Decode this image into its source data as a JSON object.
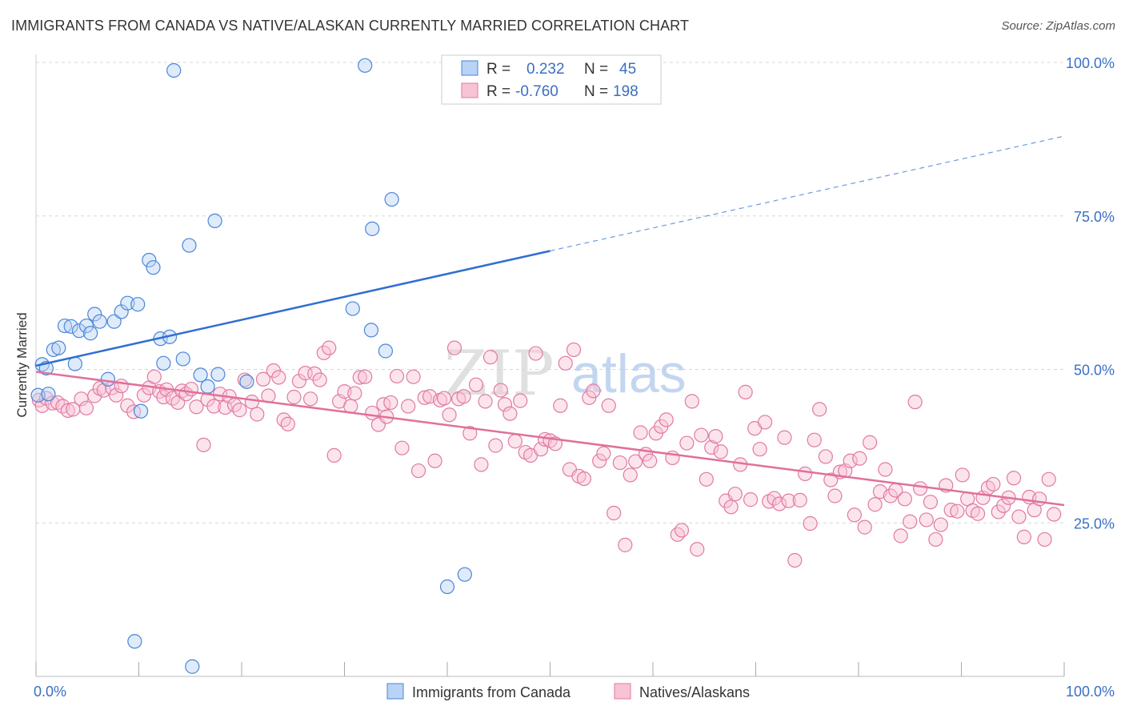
{
  "header": {
    "title": "IMMIGRANTS FROM CANADA VS NATIVE/ALASKAN CURRENTLY MARRIED CORRELATION CHART",
    "source": "Source: ZipAtlas.com"
  },
  "watermark": {
    "zip": "ZIP",
    "atlas": "atlas"
  },
  "colors": {
    "blue": "#4a86d8",
    "blue_fill": "#b8d3f5",
    "pink": "#e07aa2",
    "pink_fill": "#f8c3d5",
    "blue_line": "#2f6fd0",
    "pink_line": "#e0709a",
    "tick_label": "#3a6fc4",
    "grid": "#d7d7d7"
  },
  "legend_top": {
    "rows": [
      {
        "r_label": "R =",
        "r_value": "0.232",
        "n_label": "N =",
        "n_value": "45"
      },
      {
        "r_label": "R =",
        "r_value": "-0.760",
        "n_label": "N =",
        "n_value": "198"
      }
    ]
  },
  "legend_bottom": {
    "items": [
      "Immigrants from Canada",
      "Natives/Alaskans"
    ]
  },
  "chart_data": {
    "type": "scatter",
    "title": "IMMIGRANTS FROM CANADA VS NATIVE/ALASKAN CURRENTLY MARRIED CORRELATION CHART",
    "xlabel": "",
    "ylabel": "Currently Married",
    "xlim": [
      0,
      100
    ],
    "ylim": [
      0,
      100
    ],
    "x_tick_labels": [
      "0.0%",
      "100.0%"
    ],
    "y_ticks": [
      25,
      50,
      75,
      100
    ],
    "y_tick_labels": [
      "25.0%",
      "50.0%",
      "75.0%",
      "100.0%"
    ],
    "grid": true,
    "legend_position": "bottom",
    "series": [
      {
        "name": "Immigrants from Canada",
        "r": 0.232,
        "n": 45,
        "trend": {
          "x": [
            0,
            50,
            100
          ],
          "y": [
            50.6,
            69.3,
            88.0
          ],
          "solid_until": 50
        },
        "points": [
          [
            0.2,
            45.8
          ],
          [
            0.6,
            50.8
          ],
          [
            1.0,
            50.2
          ],
          [
            1.7,
            53.2
          ],
          [
            2.2,
            53.5
          ],
          [
            2.8,
            57.1
          ],
          [
            3.4,
            57.0
          ],
          [
            3.8,
            50.9
          ],
          [
            4.2,
            56.3
          ],
          [
            4.9,
            57.1
          ],
          [
            5.3,
            55.9
          ],
          [
            5.7,
            59.0
          ],
          [
            6.2,
            57.8
          ],
          [
            7.0,
            48.4
          ],
          [
            7.6,
            57.8
          ],
          [
            8.3,
            59.4
          ],
          [
            8.9,
            60.8
          ],
          [
            9.9,
            60.6
          ],
          [
            10.2,
            43.2
          ],
          [
            11.0,
            67.8
          ],
          [
            11.4,
            66.6
          ],
          [
            12.1,
            55.0
          ],
          [
            12.4,
            51.0
          ],
          [
            13.0,
            55.3
          ],
          [
            13.4,
            98.7
          ],
          [
            14.3,
            51.7
          ],
          [
            14.9,
            70.2
          ],
          [
            16.0,
            49.1
          ],
          [
            16.7,
            47.2
          ],
          [
            17.4,
            74.2
          ],
          [
            17.7,
            49.2
          ],
          [
            20.5,
            48.0
          ],
          [
            30.8,
            59.9
          ],
          [
            32.6,
            56.4
          ],
          [
            34.6,
            77.7
          ],
          [
            32.0,
            99.5
          ],
          [
            32.7,
            72.9
          ],
          [
            34.0,
            53.0
          ],
          [
            9.6,
            5.7
          ],
          [
            15.2,
            1.6
          ],
          [
            40.0,
            14.6
          ],
          [
            41.7,
            16.6
          ],
          [
            47.2,
            99.6
          ],
          [
            50.6,
            99.4
          ],
          [
            1.2,
            46.0
          ]
        ]
      },
      {
        "name": "Natives/Alaskans",
        "r": -0.76,
        "n": 198,
        "trend": {
          "x": [
            0,
            100
          ],
          "y": [
            49.6,
            27.9
          ]
        },
        "points": [
          [
            0.3,
            45.0
          ],
          [
            0.6,
            44.1
          ],
          [
            1.0,
            45.3
          ],
          [
            1.6,
            44.5
          ],
          [
            2.1,
            44.6
          ],
          [
            2.6,
            44.0
          ],
          [
            3.1,
            43.3
          ],
          [
            3.6,
            43.5
          ],
          [
            4.4,
            45.2
          ],
          [
            4.9,
            43.7
          ],
          [
            5.7,
            45.7
          ],
          [
            6.2,
            46.9
          ],
          [
            6.6,
            46.6
          ],
          [
            7.4,
            47.0
          ],
          [
            7.8,
            45.8
          ],
          [
            8.3,
            47.3
          ],
          [
            8.9,
            44.1
          ],
          [
            9.5,
            43.1
          ],
          [
            10.5,
            45.8
          ],
          [
            11.0,
            47.0
          ],
          [
            11.5,
            48.8
          ],
          [
            12.0,
            46.4
          ],
          [
            12.4,
            45.5
          ],
          [
            12.7,
            46.7
          ],
          [
            13.3,
            45.3
          ],
          [
            13.8,
            44.6
          ],
          [
            14.2,
            46.5
          ],
          [
            14.6,
            46.0
          ],
          [
            15.1,
            46.8
          ],
          [
            15.6,
            43.9
          ],
          [
            16.3,
            37.7
          ],
          [
            16.7,
            45.1
          ],
          [
            17.3,
            44.0
          ],
          [
            17.9,
            46.0
          ],
          [
            18.4,
            43.8
          ],
          [
            18.8,
            45.6
          ],
          [
            19.3,
            44.2
          ],
          [
            19.8,
            43.4
          ],
          [
            20.3,
            48.3
          ],
          [
            21.0,
            44.7
          ],
          [
            21.5,
            42.7
          ],
          [
            22.1,
            48.4
          ],
          [
            22.6,
            45.7
          ],
          [
            23.1,
            49.8
          ],
          [
            23.6,
            48.7
          ],
          [
            24.1,
            41.8
          ],
          [
            24.5,
            41.1
          ],
          [
            25.1,
            45.5
          ],
          [
            25.6,
            48.1
          ],
          [
            26.2,
            49.4
          ],
          [
            26.7,
            45.2
          ],
          [
            27.1,
            49.3
          ],
          [
            27.6,
            48.3
          ],
          [
            28.0,
            52.7
          ],
          [
            28.5,
            53.5
          ],
          [
            29.0,
            36.0
          ],
          [
            29.5,
            44.8
          ],
          [
            30.0,
            46.4
          ],
          [
            30.6,
            44.0
          ],
          [
            31.0,
            46.1
          ],
          [
            31.5,
            48.7
          ],
          [
            32.0,
            48.8
          ],
          [
            32.7,
            42.9
          ],
          [
            33.3,
            41.0
          ],
          [
            33.8,
            44.3
          ],
          [
            34.1,
            42.3
          ],
          [
            34.5,
            44.6
          ],
          [
            35.1,
            48.9
          ],
          [
            35.6,
            37.2
          ],
          [
            36.2,
            44.0
          ],
          [
            36.7,
            48.8
          ],
          [
            37.2,
            33.5
          ],
          [
            37.8,
            45.4
          ],
          [
            38.3,
            45.6
          ],
          [
            38.8,
            35.1
          ],
          [
            39.3,
            45.0
          ],
          [
            39.7,
            45.3
          ],
          [
            40.2,
            42.6
          ],
          [
            40.7,
            53.5
          ],
          [
            41.1,
            45.2
          ],
          [
            41.6,
            45.6
          ],
          [
            42.2,
            39.6
          ],
          [
            42.8,
            47.5
          ],
          [
            43.3,
            34.5
          ],
          [
            43.7,
            44.8
          ],
          [
            44.2,
            52.0
          ],
          [
            44.7,
            37.6
          ],
          [
            45.2,
            46.6
          ],
          [
            45.6,
            44.3
          ],
          [
            46.1,
            42.8
          ],
          [
            46.6,
            38.3
          ],
          [
            47.1,
            44.9
          ],
          [
            47.6,
            36.5
          ],
          [
            48.1,
            36.0
          ],
          [
            48.6,
            52.6
          ],
          [
            49.1,
            37.0
          ],
          [
            49.5,
            38.6
          ],
          [
            50.0,
            38.4
          ],
          [
            50.5,
            37.9
          ],
          [
            51.0,
            44.1
          ],
          [
            51.5,
            51.0
          ],
          [
            51.9,
            33.7
          ],
          [
            52.3,
            53.2
          ],
          [
            52.8,
            32.6
          ],
          [
            53.3,
            32.2
          ],
          [
            53.8,
            45.4
          ],
          [
            54.2,
            46.5
          ],
          [
            54.8,
            35.1
          ],
          [
            55.2,
            36.3
          ],
          [
            55.7,
            44.1
          ],
          [
            56.2,
            26.6
          ],
          [
            56.8,
            34.8
          ],
          [
            57.3,
            21.4
          ],
          [
            57.8,
            32.8
          ],
          [
            58.3,
            35.0
          ],
          [
            58.8,
            39.7
          ],
          [
            59.3,
            36.2
          ],
          [
            59.7,
            35.1
          ],
          [
            60.3,
            39.6
          ],
          [
            60.8,
            40.7
          ],
          [
            61.3,
            41.8
          ],
          [
            61.9,
            35.6
          ],
          [
            62.4,
            23.1
          ],
          [
            62.8,
            23.8
          ],
          [
            63.3,
            38.0
          ],
          [
            63.8,
            44.8
          ],
          [
            64.3,
            20.7
          ],
          [
            64.7,
            39.3
          ],
          [
            65.2,
            32.1
          ],
          [
            65.7,
            37.3
          ],
          [
            66.1,
            39.1
          ],
          [
            66.6,
            36.6
          ],
          [
            67.1,
            28.6
          ],
          [
            67.6,
            27.6
          ],
          [
            68.0,
            29.7
          ],
          [
            68.5,
            34.5
          ],
          [
            69.0,
            46.3
          ],
          [
            69.5,
            28.8
          ],
          [
            69.9,
            40.4
          ],
          [
            70.4,
            37.0
          ],
          [
            70.9,
            41.4
          ],
          [
            71.3,
            28.5
          ],
          [
            71.8,
            29.0
          ],
          [
            72.3,
            28.1
          ],
          [
            72.8,
            38.9
          ],
          [
            73.2,
            28.6
          ],
          [
            73.8,
            18.9
          ],
          [
            74.3,
            28.7
          ],
          [
            74.8,
            33.0
          ],
          [
            75.3,
            24.9
          ],
          [
            75.7,
            38.5
          ],
          [
            76.2,
            43.5
          ],
          [
            76.8,
            35.8
          ],
          [
            77.3,
            32.0
          ],
          [
            77.7,
            29.4
          ],
          [
            78.2,
            33.3
          ],
          [
            78.7,
            33.5
          ],
          [
            79.2,
            35.1
          ],
          [
            79.6,
            26.3
          ],
          [
            80.1,
            35.5
          ],
          [
            80.6,
            24.3
          ],
          [
            81.1,
            38.1
          ],
          [
            81.6,
            28.0
          ],
          [
            82.1,
            30.1
          ],
          [
            82.6,
            33.7
          ],
          [
            83.1,
            29.4
          ],
          [
            83.6,
            30.3
          ],
          [
            84.1,
            22.9
          ],
          [
            84.5,
            28.9
          ],
          [
            85.0,
            25.2
          ],
          [
            85.5,
            44.7
          ],
          [
            86.0,
            30.6
          ],
          [
            86.6,
            25.5
          ],
          [
            87.0,
            28.4
          ],
          [
            87.5,
            22.3
          ],
          [
            88.0,
            24.7
          ],
          [
            88.5,
            31.1
          ],
          [
            89.0,
            27.1
          ],
          [
            89.6,
            26.9
          ],
          [
            90.1,
            32.8
          ],
          [
            90.6,
            28.9
          ],
          [
            91.1,
            27.0
          ],
          [
            91.6,
            26.5
          ],
          [
            92.1,
            29.1
          ],
          [
            92.6,
            30.7
          ],
          [
            93.1,
            31.3
          ],
          [
            93.6,
            26.8
          ],
          [
            94.1,
            27.8
          ],
          [
            94.6,
            29.1
          ],
          [
            95.1,
            32.3
          ],
          [
            95.6,
            26.0
          ],
          [
            96.1,
            22.7
          ],
          [
            96.6,
            29.2
          ],
          [
            97.1,
            27.1
          ],
          [
            97.6,
            28.9
          ],
          [
            98.1,
            22.3
          ],
          [
            98.5,
            32.1
          ],
          [
            99.0,
            26.4
          ]
        ]
      }
    ]
  }
}
